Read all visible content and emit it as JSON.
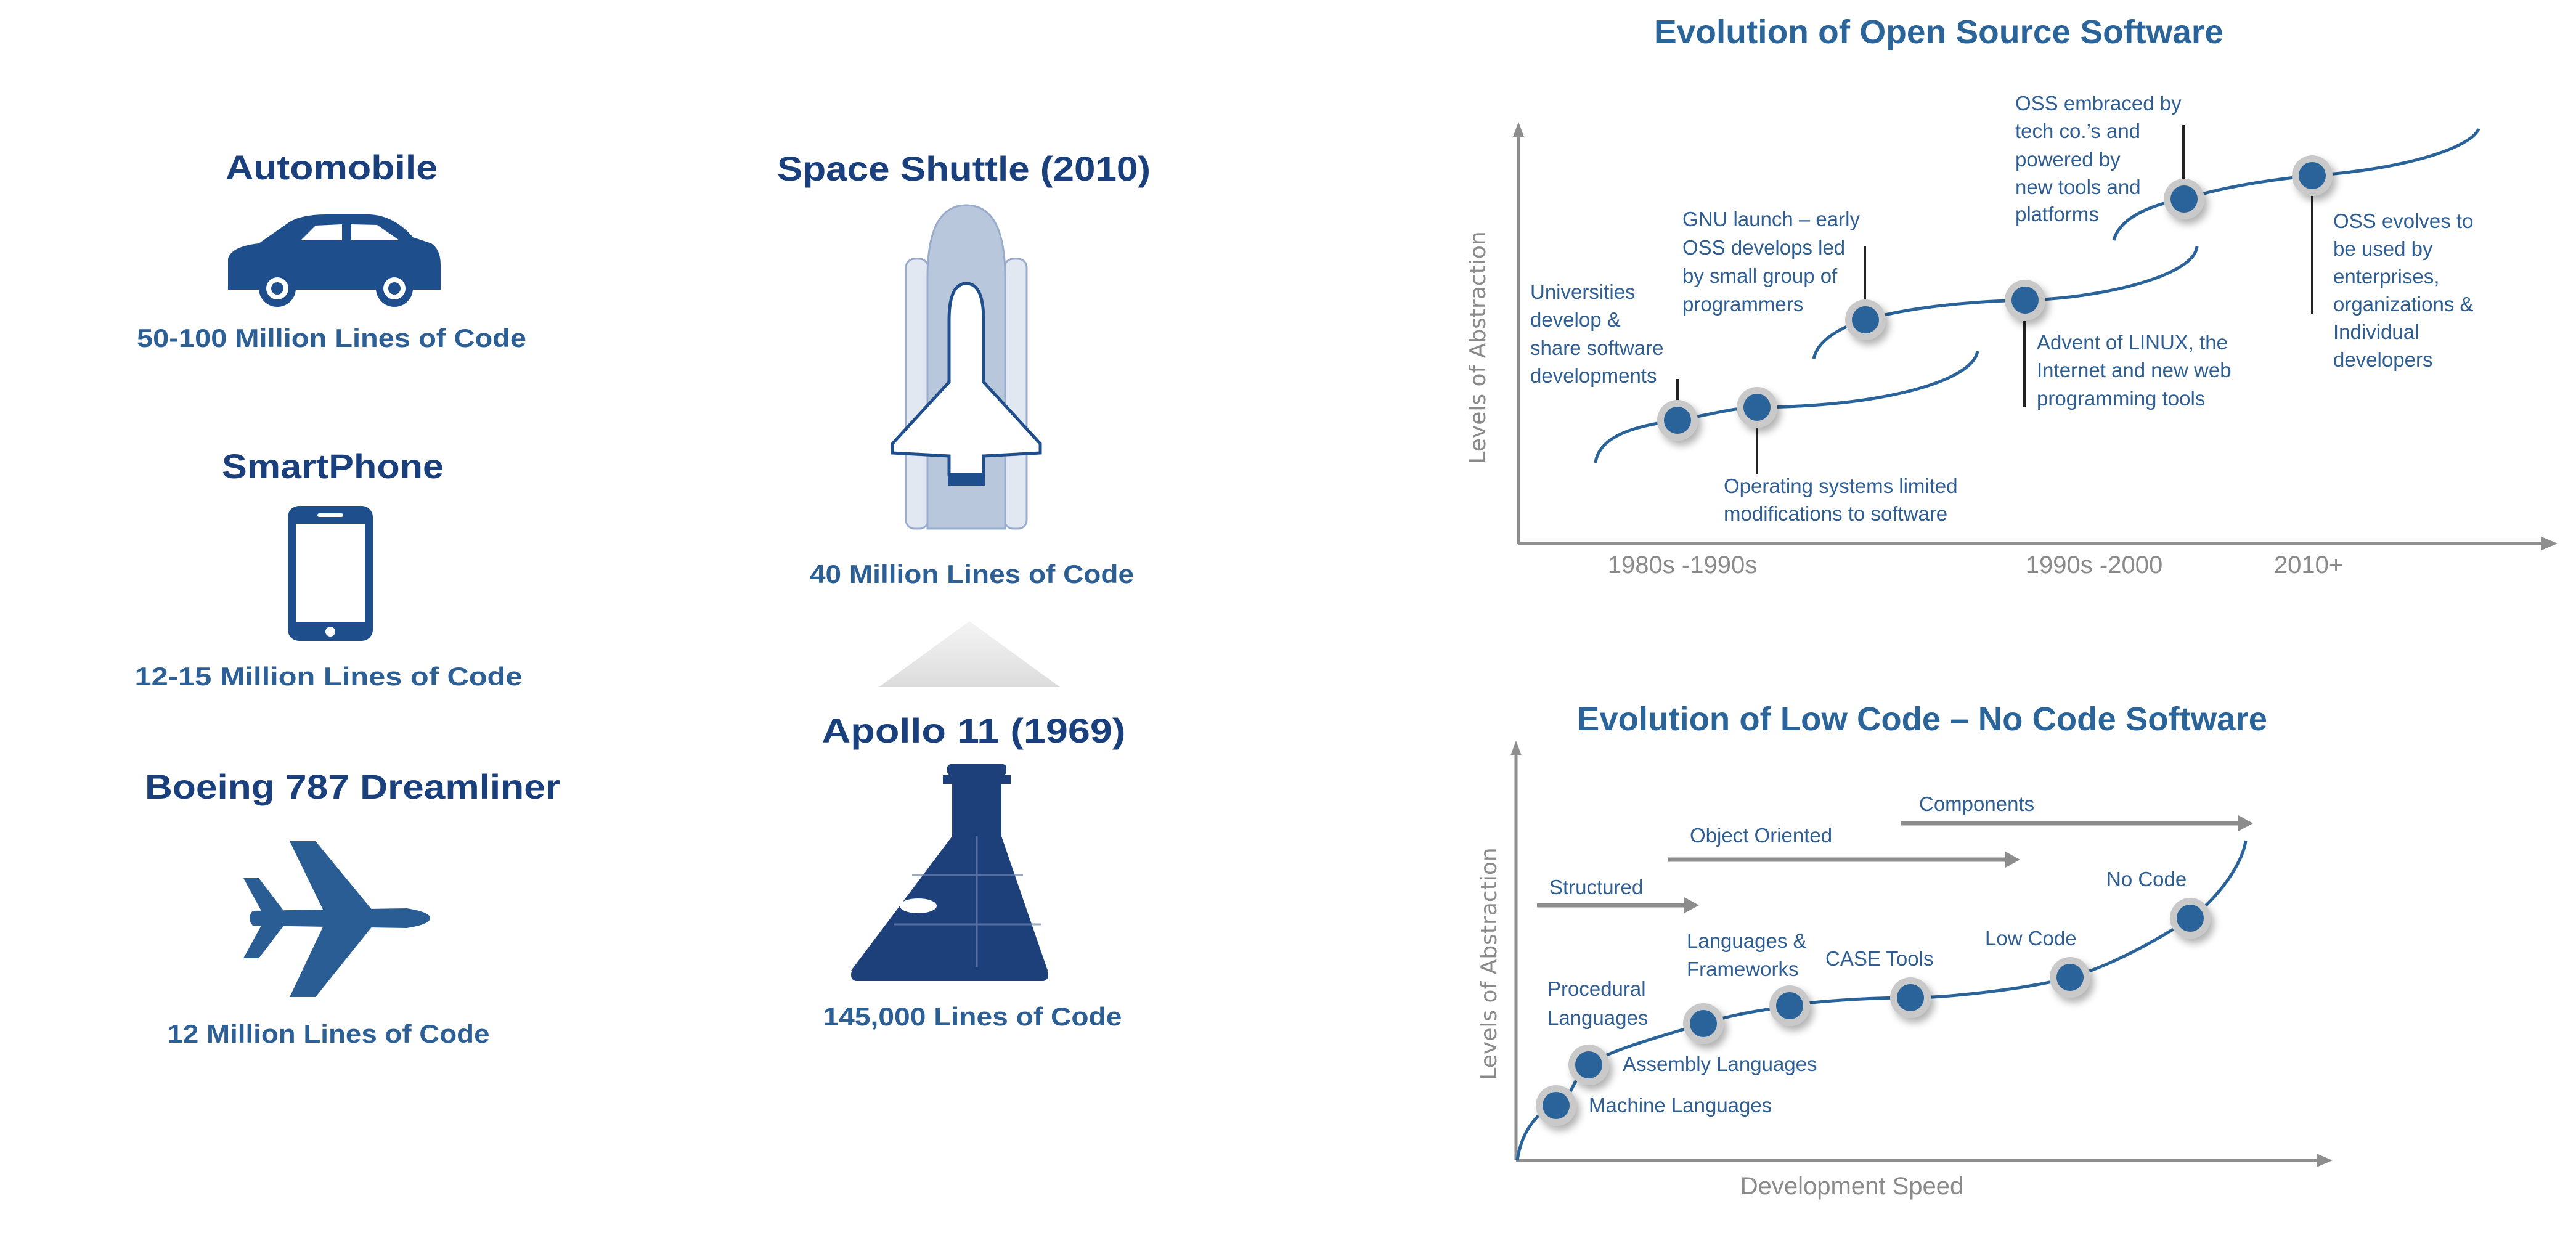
{
  "left_column": {
    "automobile": {
      "title": "Automobile",
      "caption": "50-100 Million Lines of Code",
      "icon": "car-icon"
    },
    "smartphone": {
      "title": "SmartPhone",
      "caption": "12-15 Million Lines  of Code",
      "icon": "smartphone-icon"
    },
    "boeing": {
      "title": "Boeing 787 Dreamliner",
      "caption": "12 Million Lines of Code",
      "icon": "airplane-icon"
    }
  },
  "middle_column": {
    "shuttle": {
      "title": "Space Shuttle (2010)",
      "caption": "40 Million Lines of Code",
      "icon": "space-shuttle-icon"
    },
    "apollo": {
      "title": "Apollo 11 (1969)",
      "caption": "145,000 Lines of Code",
      "icon": "apollo-capsule-icon"
    }
  },
  "oss_chart": {
    "title": "Evolution  of Open Source Software",
    "y_axis_label": "Levels of Abstraction",
    "x_ticks": [
      "1980s -1990s",
      "1990s -2000",
      "2010+"
    ],
    "milestones": [
      {
        "lines": [
          "Universities",
          "develop &",
          "share software",
          "developments"
        ]
      },
      {
        "lines": [
          "Operating systems limited",
          "modifications to software"
        ]
      },
      {
        "lines": [
          "GNU launch – early",
          "OSS develops led",
          "by small group of",
          "programmers"
        ]
      },
      {
        "lines": [
          "Advent of LINUX, the",
          "Internet and new web",
          "programming tools"
        ]
      },
      {
        "lines": [
          "OSS embraced by",
          "tech co.’s  and",
          "powered by",
          "new tools and",
          "platforms"
        ]
      },
      {
        "lines": [
          "OSS evolves to",
          "be used by",
          "enterprises,",
          "organizations &",
          "Individual",
          "developers"
        ]
      }
    ]
  },
  "lowcode_chart": {
    "title": "Evolution  of Low Code  – No Code  Software",
    "y_axis_label": "Levels of Abstraction",
    "x_axis_label": "Development Speed",
    "eras": [
      "Structured",
      "Object Oriented",
      "Components"
    ],
    "stages": [
      {
        "lines": [
          "Machine Languages"
        ]
      },
      {
        "lines": [
          "Assembly Languages"
        ]
      },
      {
        "lines": [
          "Procedural",
          "Languages"
        ]
      },
      {
        "lines": [
          "Languages &",
          "Frameworks"
        ]
      },
      {
        "lines": [
          "CASE Tools"
        ]
      },
      {
        "lines": [
          "Low Code"
        ]
      },
      {
        "lines": [
          "No Code"
        ]
      }
    ]
  },
  "colors": {
    "navy": "#1a3f7d",
    "caption_blue": "#2b5f95",
    "curve_blue": "#2a6399",
    "axis_gray": "#8e8e8e"
  }
}
